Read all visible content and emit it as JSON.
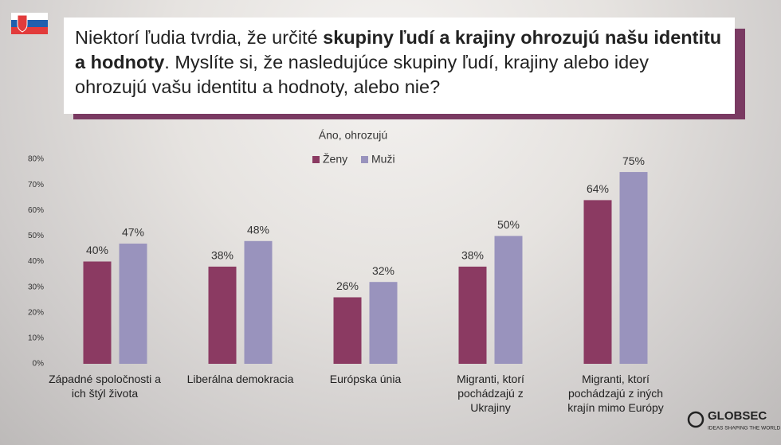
{
  "chart_data": {
    "type": "bar",
    "title_parts": [
      {
        "text": "Niektorí ľudia tvrdia, že určité",
        "bold": false
      },
      {
        "text": "skupiny ľudí a krajiny ohrozujú našu identitu a hodnoty",
        "bold": true
      },
      {
        "text": ". Myslíte si, že nasledujúce skupiny ľudí, krajiny alebo idey ohrozujú vašu identitu a hodnoty, alebo nie?",
        "bold": false
      }
    ],
    "legend_title": "Áno, ohrozujú",
    "categories": [
      "Západné spoločnosti a ich štýl života",
      "Liberálna demokracia",
      "Európska únia",
      "Migranti, ktorí pochádzajú z Ukrajiny",
      "Migranti, ktorí pochádzajú z iných krajín mimo Európy"
    ],
    "series": [
      {
        "name": "Ženy",
        "color": "#8b3a62",
        "values": [
          40,
          38,
          26,
          38,
          64
        ],
        "value_labels": [
          "40%",
          "38%",
          "26%",
          "38%",
          "64%"
        ]
      },
      {
        "name": "Muži",
        "color": "#9993bd",
        "values": [
          47,
          48,
          32,
          50,
          75
        ],
        "value_labels": [
          "47%",
          "48%",
          "32%",
          "50%",
          "75%"
        ]
      }
    ],
    "ylim": [
      0,
      80
    ],
    "yticks": [
      {
        "value": 0,
        "label": "0%"
      },
      {
        "value": 10,
        "label": "10%"
      },
      {
        "value": 20,
        "label": "20%"
      },
      {
        "value": 30,
        "label": "30%"
      },
      {
        "value": 40,
        "label": "40%"
      },
      {
        "value": 50,
        "label": "50%"
      },
      {
        "value": 60,
        "label": "60%"
      },
      {
        "value": 70,
        "label": "70%"
      },
      {
        "value": 80,
        "label": "80%"
      }
    ],
    "grid": false
  },
  "logo": {
    "name": "GLOBSEC",
    "tagline": "IDEAS SHAPING THE WORLD"
  }
}
